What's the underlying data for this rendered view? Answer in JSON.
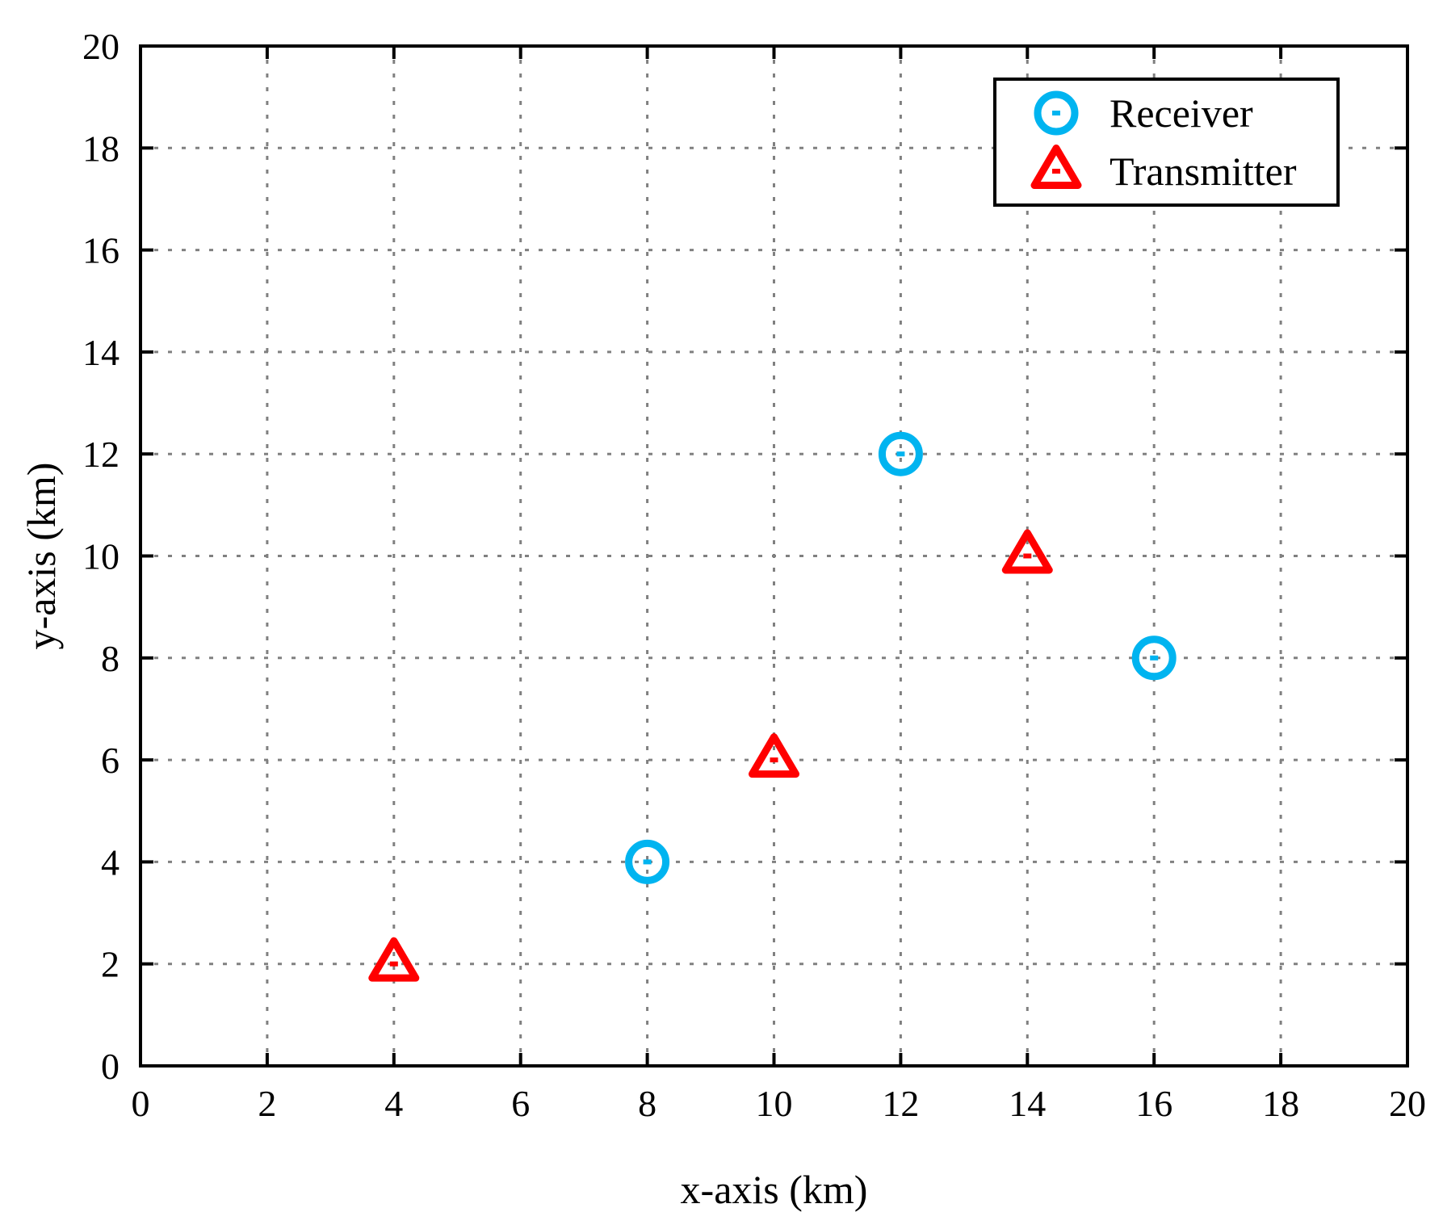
{
  "chart_data": {
    "type": "scatter",
    "title": "",
    "xlabel": "x-axis (km)",
    "ylabel": "y-axis (km)",
    "xlim": [
      0,
      20
    ],
    "ylim": [
      0,
      20
    ],
    "xticks": [
      0,
      2,
      4,
      6,
      8,
      10,
      12,
      14,
      16,
      18,
      20
    ],
    "yticks": [
      0,
      2,
      4,
      6,
      8,
      10,
      12,
      14,
      16,
      18,
      20
    ],
    "grid": true,
    "legend_position": "top-right",
    "series": [
      {
        "name": "Receiver",
        "marker": "circle",
        "color": "#00b4f0",
        "points": [
          {
            "x": 8,
            "y": 4
          },
          {
            "x": 12,
            "y": 12
          },
          {
            "x": 16,
            "y": 8
          }
        ]
      },
      {
        "name": "Transmitter",
        "marker": "triangle",
        "color": "#ff0000",
        "points": [
          {
            "x": 4,
            "y": 2
          },
          {
            "x": 10,
            "y": 6
          },
          {
            "x": 14,
            "y": 10
          }
        ]
      }
    ]
  }
}
